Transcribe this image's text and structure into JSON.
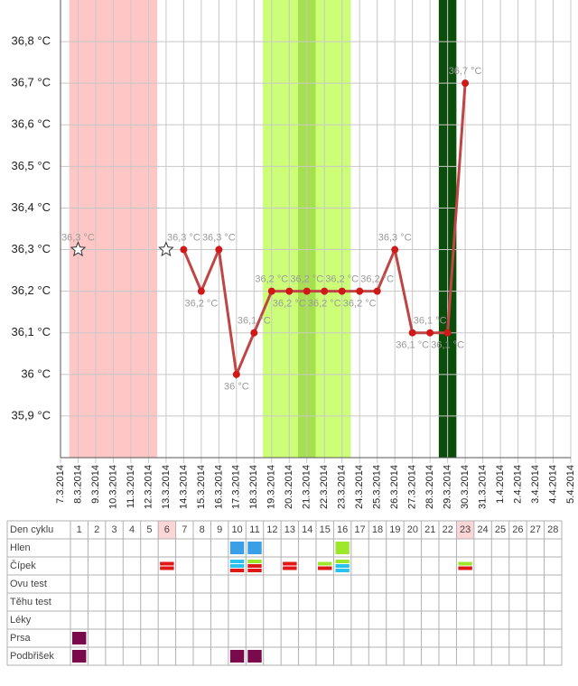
{
  "chart_data": {
    "type": "line",
    "categories": [
      "7.3.2014",
      "8.3.2014",
      "9.3.2014",
      "10.3.2014",
      "11.3.2014",
      "12.3.2014",
      "13.3.2014",
      "14.3.2014",
      "15.3.2014",
      "16.3.2014",
      "17.3.2014",
      "18.3.2014",
      "19.3.2014",
      "20.3.2014",
      "21.3.2014",
      "22.3.2014",
      "23.3.2014",
      "24.3.2014",
      "25.3.2014",
      "26.3.2014",
      "27.3.2014",
      "28.3.2014",
      "29.3.2014",
      "30.3.2014",
      "31.3.2014",
      "1.4.2014",
      "2.4.2014",
      "3.4.2014",
      "4.4.2014",
      "5.4.2014"
    ],
    "ylim": [
      35.8,
      36.9
    ],
    "yticks": [
      {
        "value": 35.9,
        "label": "35,9 °C"
      },
      {
        "value": 36,
        "label": "36 °C"
      },
      {
        "value": 36.1,
        "label": "36,1 °C"
      },
      {
        "value": 36.2,
        "label": "36,2 °C"
      },
      {
        "value": 36.3,
        "label": "36,3 °C"
      },
      {
        "value": 36.4,
        "label": "36,4 °C"
      },
      {
        "value": 36.5,
        "label": "36,5 °C"
      },
      {
        "value": 36.6,
        "label": "36,6 °C"
      },
      {
        "value": 36.7,
        "label": "36,7 °C"
      },
      {
        "value": 36.8,
        "label": "36,8 °C"
      }
    ],
    "grid": true,
    "bands": [
      {
        "from": 1,
        "to": 5,
        "color": "#ffc6c6"
      },
      {
        "from": 12,
        "to": 16,
        "color": "#ccff77"
      },
      {
        "from": 14,
        "to": 14,
        "color": "#a6e04e"
      },
      {
        "from": 22,
        "to": 22,
        "color": "#0b4d0b"
      }
    ],
    "series": [
      {
        "color": "#999999",
        "style": "dotted",
        "marker": "star",
        "values": [
          null,
          36.3,
          null,
          null,
          null,
          null,
          36.3,
          null,
          null,
          null,
          null,
          null,
          null,
          null,
          null,
          null,
          null,
          null,
          null,
          null,
          null,
          null,
          null,
          null,
          null,
          null,
          null,
          null,
          null,
          null
        ],
        "value_labels": [
          null,
          "36,3 °C",
          null,
          null,
          null,
          null,
          null,
          null,
          null,
          null,
          null,
          null,
          null,
          null,
          null,
          null,
          null,
          null,
          null,
          null,
          null,
          null,
          null,
          null,
          null,
          null,
          null,
          null,
          null,
          null
        ]
      },
      {
        "color": "#c04545",
        "style": "solid",
        "marker": "circle",
        "values": [
          null,
          null,
          null,
          null,
          null,
          null,
          null,
          36.3,
          36.2,
          36.3,
          36,
          36.1,
          36.2,
          36.2,
          36.2,
          36.2,
          36.2,
          36.2,
          36.2,
          36.3,
          36.1,
          36.1,
          36.1,
          36.7,
          null,
          null,
          null,
          null,
          null,
          null
        ],
        "value_labels": [
          null,
          null,
          null,
          null,
          null,
          null,
          null,
          "36,3 °C",
          "36,2 °C",
          "36,3 °C",
          "36 °C",
          "36,1 °C",
          "36,2 °C",
          "36,2 °C",
          "36,2 °C",
          "36,2 °C",
          "36,2 °C",
          "36,2 °C",
          "36,2 °C",
          "36,3 °C",
          "36,1 °C",
          "36,1 °C",
          "36,1 °C",
          "36,7 °C",
          null,
          null,
          null,
          null,
          null,
          null
        ]
      },
      {
        "color": "#d06060",
        "style": "dotted",
        "marker": "none",
        "values": [
          null,
          null,
          null,
          null,
          null,
          null,
          null,
          null,
          null,
          null,
          null,
          null,
          null,
          null,
          null,
          null,
          null,
          null,
          null,
          null,
          null,
          null,
          null,
          36.7,
          null,
          null,
          null,
          null,
          36.7,
          null
        ]
      }
    ]
  },
  "table": {
    "header": "Den cyklu",
    "days": [
      1,
      2,
      3,
      4,
      5,
      6,
      7,
      8,
      9,
      10,
      11,
      12,
      13,
      14,
      15,
      16,
      17,
      18,
      19,
      20,
      21,
      22,
      23,
      24,
      25,
      26,
      27,
      28
    ],
    "highlight": [
      6,
      23
    ],
    "rows": [
      {
        "label": "Hlen",
        "cells": [
          {
            "day": 10,
            "colors": [
              "#3a9fe6"
            ]
          },
          {
            "day": 11,
            "colors": [
              "#3a9fe6"
            ]
          },
          {
            "day": 16,
            "colors": [
              "#9ee82c"
            ]
          }
        ]
      },
      {
        "label": "Čípek",
        "cells": [
          {
            "day": 6,
            "colors": [
              "#e01818",
              "#e01818"
            ]
          },
          {
            "day": 10,
            "colors": [
              "#29c1f0",
              "#29c1f0",
              "#e01818"
            ]
          },
          {
            "day": 11,
            "colors": [
              "#9ee82c",
              "#e01818",
              "#e01818"
            ]
          },
          {
            "day": 13,
            "colors": [
              "#e01818",
              "#e01818"
            ]
          },
          {
            "day": 15,
            "colors": [
              "#9ee82c",
              "#e01818"
            ]
          },
          {
            "day": 16,
            "colors": [
              "#9ee82c",
              "#29c1f0",
              "#29c1f0"
            ]
          },
          {
            "day": 23,
            "colors": [
              "#9ee82c",
              "#e01818"
            ]
          }
        ]
      },
      {
        "label": "Ovu test",
        "cells": []
      },
      {
        "label": "Těhu test",
        "cells": []
      },
      {
        "label": "Léky",
        "cells": []
      },
      {
        "label": "Prsa",
        "cells": [
          {
            "day": 1,
            "colors": [
              "#7b0a4c"
            ]
          }
        ]
      },
      {
        "label": "Podbřišek",
        "cells": [
          {
            "day": 1,
            "colors": [
              "#7b0a4c"
            ]
          },
          {
            "day": 10,
            "colors": [
              "#7b0a4c"
            ]
          },
          {
            "day": 11,
            "colors": [
              "#7b0a4c"
            ]
          }
        ]
      }
    ]
  }
}
